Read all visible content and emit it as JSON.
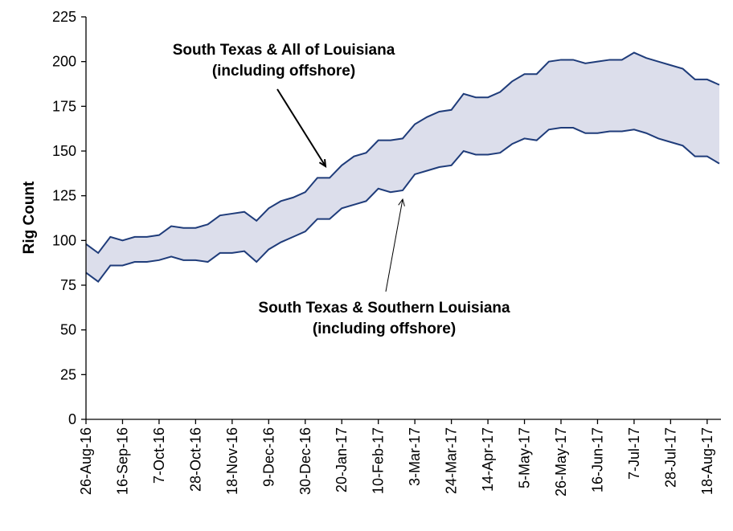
{
  "colors": {
    "band_fill": "#DCDEEB",
    "line": "#1F3C7A",
    "axis": "#000000"
  },
  "chart_data": {
    "type": "area",
    "ylabel": "Rig Count",
    "ylim": [
      0,
      225
    ],
    "y_ticks": [
      0,
      25,
      50,
      75,
      100,
      125,
      150,
      175,
      200,
      225
    ],
    "x_tick_labels": [
      "26-Aug-16",
      "16-Sep-16",
      "7-Oct-16",
      "28-Oct-16",
      "18-Nov-16",
      "9-Dec-16",
      "30-Dec-16",
      "20-Jan-17",
      "10-Feb-17",
      "3-Mar-17",
      "24-Mar-17",
      "14-Apr-17",
      "5-May-17",
      "26-May-17",
      "16-Jun-17",
      "7-Jul-17",
      "28-Jul-17",
      "18-Aug-17"
    ],
    "x_weeks": [
      "26-Aug-16",
      "2-Sep-16",
      "9-Sep-16",
      "16-Sep-16",
      "23-Sep-16",
      "30-Sep-16",
      "7-Oct-16",
      "14-Oct-16",
      "21-Oct-16",
      "28-Oct-16",
      "4-Nov-16",
      "11-Nov-16",
      "18-Nov-16",
      "25-Nov-16",
      "2-Dec-16",
      "9-Dec-16",
      "16-Dec-16",
      "23-Dec-16",
      "30-Dec-16",
      "6-Jan-17",
      "13-Jan-17",
      "20-Jan-17",
      "27-Jan-17",
      "3-Feb-17",
      "10-Feb-17",
      "17-Feb-17",
      "24-Feb-17",
      "3-Mar-17",
      "10-Mar-17",
      "17-Mar-17",
      "24-Mar-17",
      "31-Mar-17",
      "7-Apr-17",
      "14-Apr-17",
      "21-Apr-17",
      "28-Apr-17",
      "5-May-17",
      "12-May-17",
      "19-May-17",
      "26-May-17",
      "2-Jun-17",
      "9-Jun-17",
      "16-Jun-17",
      "23-Jun-17",
      "30-Jun-17",
      "7-Jul-17",
      "14-Jul-17",
      "21-Jul-17",
      "28-Jul-17",
      "4-Aug-17",
      "11-Aug-17",
      "18-Aug-17",
      "25-Aug-17"
    ],
    "series": [
      {
        "values": [
          98,
          93,
          102,
          100,
          102,
          102,
          103,
          108,
          107,
          107,
          109,
          114,
          115,
          116,
          111,
          118,
          122,
          124,
          127,
          135,
          135,
          142,
          147,
          149,
          156,
          156,
          157,
          165,
          169,
          172,
          173,
          182,
          180,
          180,
          183,
          189,
          193,
          193,
          200,
          201,
          201,
          199,
          200,
          201,
          201,
          205,
          202,
          200,
          198,
          196,
          190,
          190,
          187
        ]
      },
      {
        "values": [
          82,
          77,
          86,
          86,
          88,
          88,
          89,
          91,
          89,
          89,
          88,
          93,
          93,
          94,
          88,
          95,
          99,
          102,
          105,
          112,
          112,
          118,
          120,
          122,
          129,
          127,
          128,
          137,
          139,
          141,
          142,
          150,
          148,
          148,
          149,
          154,
          157,
          156,
          162,
          163,
          163,
          160,
          160,
          161,
          161,
          162,
          160,
          157,
          155,
          153,
          147,
          147,
          143
        ]
      }
    ],
    "annotations": [
      {
        "lines": [
          "South Texas & All of Louisiana",
          "(including offshore)"
        ],
        "target_week": "3-Jan-17",
        "target_value": 136
      },
      {
        "lines": [
          "South Texas & Southern Louisiana",
          "(including offshore)"
        ],
        "target_week": "24-Feb-17",
        "target_value": 124
      }
    ]
  }
}
